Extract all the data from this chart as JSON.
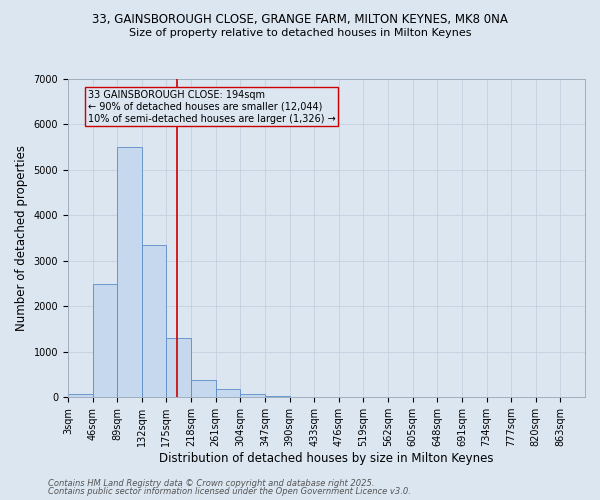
{
  "title_line1": "33, GAINSBOROUGH CLOSE, GRANGE FARM, MILTON KEYNES, MK8 0NA",
  "title_line2": "Size of property relative to detached houses in Milton Keynes",
  "xlabel": "Distribution of detached houses by size in Milton Keynes",
  "ylabel": "Number of detached properties",
  "categories": [
    "3sqm",
    "46sqm",
    "89sqm",
    "132sqm",
    "175sqm",
    "218sqm",
    "261sqm",
    "304sqm",
    "347sqm",
    "390sqm",
    "433sqm",
    "476sqm",
    "519sqm",
    "562sqm",
    "605sqm",
    "648sqm",
    "691sqm",
    "734sqm",
    "777sqm",
    "820sqm",
    "863sqm"
  ],
  "bar_heights": [
    75,
    2500,
    5500,
    3350,
    1300,
    380,
    175,
    80,
    30,
    8,
    2,
    1,
    0,
    0,
    0,
    0,
    0,
    0,
    0,
    0,
    0
  ],
  "bar_color": "#c5d8ee",
  "bar_edgecolor": "#5b8cc8",
  "background_color": "#dce6f1",
  "ylim": [
    0,
    7000
  ],
  "yticks": [
    0,
    1000,
    2000,
    3000,
    4000,
    5000,
    6000,
    7000
  ],
  "property_size_bin": 4,
  "red_line_color": "#cc0000",
  "annotation_text": "33 GAINSBOROUGH CLOSE: 194sqm\n← 90% of detached houses are smaller (12,044)\n10% of semi-detached houses are larger (1,326) →",
  "annotation_box_edgecolor": "#cc0000",
  "footer_line1": "Contains HM Land Registry data © Crown copyright and database right 2025.",
  "footer_line2": "Contains public sector information licensed under the Open Government Licence v3.0.",
  "grid_color": "#c5cfe0",
  "title_fontsize": 8.5,
  "subtitle_fontsize": 8.0,
  "tick_fontsize": 7.0,
  "label_fontsize": 8.5,
  "annotation_fontsize": 7.0,
  "footer_fontsize": 6.0
}
